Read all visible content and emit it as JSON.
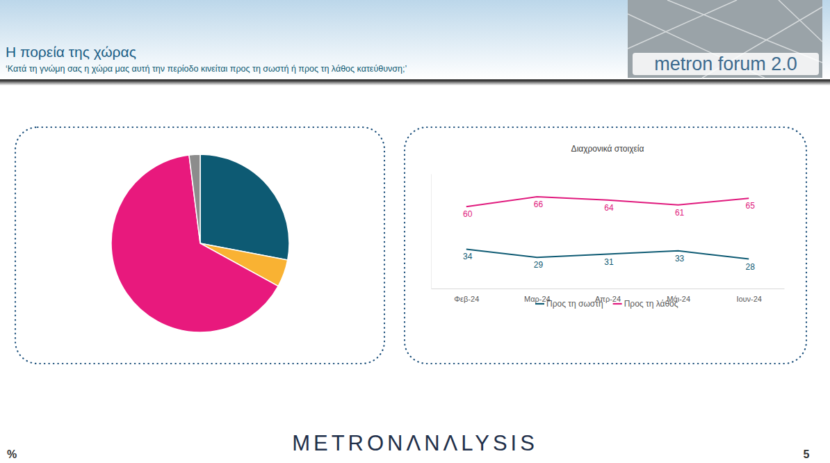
{
  "page": {
    "title": "Η πορεία της χώρας",
    "subtitle": "‘Κατά τη γνώμη σας η χώρα μας αυτή την περίοδο κινείται προς τη σωστή ή προς τη λάθος κατεύθυνση;’",
    "logo": "metron forum 2.0",
    "footer": "METRONΛNΛLYSIS",
    "unit": "%",
    "page_number": "5"
  },
  "chart_data": [
    {
      "type": "pie",
      "values": [
        28,
        5,
        65,
        2
      ],
      "colors": [
        "#0d5a73",
        "#f9b233",
        "#e8197d",
        "#8c8c8c"
      ]
    },
    {
      "type": "line",
      "title": "Διαχρονικά στοιχεία",
      "categories": [
        "Φεβ-24",
        "Μαρ-24",
        "Απρ-24",
        "Μάι-24",
        "Ιουν-24"
      ],
      "series": [
        {
          "name": "Προς τη σωστή",
          "color": "#0d5a73",
          "values": [
            34,
            29,
            31,
            33,
            28
          ]
        },
        {
          "name": "Προς τη λάθος",
          "color": "#e0197d",
          "values": [
            60,
            66,
            64,
            61,
            65
          ]
        }
      ],
      "ylim": [
        10,
        80
      ],
      "yticks": [],
      "tick_labels": "x",
      "data_labels": true,
      "legend": "bottom"
    }
  ]
}
